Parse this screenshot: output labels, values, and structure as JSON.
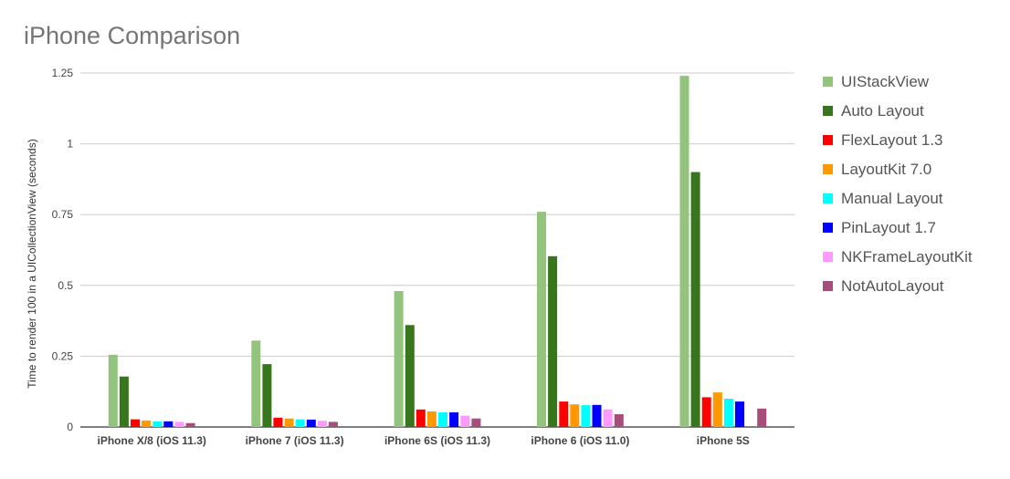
{
  "chart_data": {
    "type": "bar",
    "title": "iPhone Comparison",
    "xlabel": "",
    "ylabel": "Time to  render 100 in a UICollectionView (seconds)",
    "ylim": [
      0,
      1.25
    ],
    "yticks": [
      "0",
      "0.25",
      "0.5",
      "0.75",
      "1",
      "1.25"
    ],
    "grid": true,
    "legend_position": "right",
    "categories": [
      "iPhone X/8 (iOS 11.3)",
      "iPhone 7 (iOS 11.3)",
      "iPhone 6S (iOS 11.3)",
      "iPhone 6 (iOS 11.0)",
      "iPhone 5S"
    ],
    "series": [
      {
        "name": "UIStackView",
        "color": "#93c47d",
        "values": [
          0.255,
          0.305,
          0.48,
          0.76,
          1.24
        ]
      },
      {
        "name": "Auto Layout",
        "color": "#38761d",
        "values": [
          0.178,
          0.222,
          0.36,
          0.603,
          0.9
        ]
      },
      {
        "name": "FlexLayout 1.3",
        "color": "#ff0000",
        "values": [
          0.027,
          0.033,
          0.062,
          0.09,
          0.105
        ]
      },
      {
        "name": "LayoutKit 7.0",
        "color": "#ff9900",
        "values": [
          0.023,
          0.03,
          0.055,
          0.08,
          0.122
        ]
      },
      {
        "name": "Manual Layout",
        "color": "#00ffff",
        "values": [
          0.02,
          0.027,
          0.052,
          0.077,
          0.1
        ]
      },
      {
        "name": "PinLayout 1.7",
        "color": "#0000ff",
        "values": [
          0.02,
          0.026,
          0.052,
          0.078,
          0.09
        ]
      },
      {
        "name": "NKFrameLayoutKit",
        "color": "#ff99ff",
        "values": [
          0.018,
          0.022,
          0.04,
          0.062,
          null
        ]
      },
      {
        "name": "NotAutoLayout",
        "color": "#a64d79",
        "values": [
          0.014,
          0.018,
          0.03,
          0.045,
          0.065
        ]
      }
    ]
  }
}
